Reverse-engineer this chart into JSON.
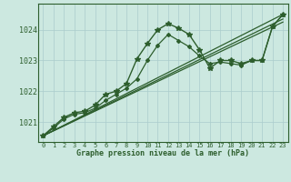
{
  "title": "Graphe pression niveau de la mer (hPa)",
  "bg_color": "#cce8e0",
  "plot_bg_color": "#cce8e0",
  "grid_color": "#aacccc",
  "line_color": "#2d5e2d",
  "xlim": [
    -0.5,
    23.5
  ],
  "ylim": [
    1020.35,
    1024.85
  ],
  "yticks": [
    1021,
    1022,
    1023,
    1024
  ],
  "xticks": [
    0,
    1,
    2,
    3,
    4,
    5,
    6,
    7,
    8,
    9,
    10,
    11,
    12,
    13,
    14,
    15,
    16,
    17,
    18,
    19,
    20,
    21,
    22,
    23
  ],
  "series": [
    {
      "x": [
        0,
        1,
        2,
        3,
        4,
        5,
        6,
        7,
        8,
        9,
        10,
        11,
        12,
        13,
        14,
        15,
        16,
        17,
        18,
        19,
        20,
        21,
        22,
        23
      ],
      "y": [
        1020.55,
        1020.85,
        1021.15,
        1021.3,
        1021.35,
        1021.55,
        1021.9,
        1022.0,
        1022.25,
        1023.05,
        1023.55,
        1024.0,
        1024.2,
        1024.05,
        1023.85,
        1023.35,
        1022.75,
        1023.0,
        1023.0,
        1022.9,
        1023.0,
        1023.0,
        1024.1,
        1024.5
      ],
      "marker": "*",
      "markersize": 4.0,
      "lw": 1.0
    },
    {
      "x": [
        0,
        1,
        2,
        3,
        4,
        5,
        6,
        7,
        8,
        9,
        10,
        11,
        12,
        13,
        14,
        15,
        16,
        17,
        18,
        19,
        20,
        21,
        22,
        23
      ],
      "y": [
        1020.55,
        1020.8,
        1021.1,
        1021.25,
        1021.3,
        1021.45,
        1021.7,
        1021.9,
        1022.1,
        1022.4,
        1023.0,
        1023.5,
        1023.85,
        1023.65,
        1023.45,
        1023.15,
        1022.9,
        1022.95,
        1022.9,
        1022.85,
        1023.0,
        1023.0,
        1024.1,
        1024.5
      ],
      "marker": "D",
      "markersize": 2.0,
      "lw": 0.9
    },
    {
      "x": [
        0,
        23
      ],
      "y": [
        1020.55,
        1024.25
      ],
      "marker": "None",
      "markersize": 0,
      "lw": 0.9
    },
    {
      "x": [
        0,
        23
      ],
      "y": [
        1020.55,
        1024.35
      ],
      "marker": "None",
      "markersize": 0,
      "lw": 0.9
    },
    {
      "x": [
        0,
        23
      ],
      "y": [
        1020.55,
        1024.5
      ],
      "marker": "None",
      "markersize": 0,
      "lw": 0.9
    }
  ]
}
